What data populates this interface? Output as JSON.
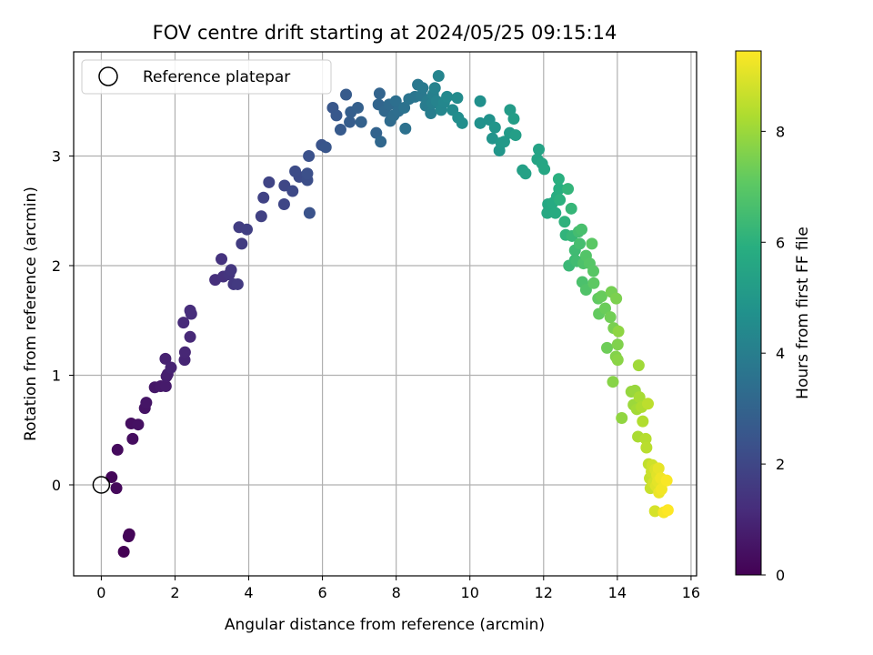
{
  "chart_data": {
    "type": "scatter",
    "title": "FOV centre drift starting at 2024/05/25 09:15:14",
    "xlabel": "Angular distance from reference (arcmin)",
    "ylabel": "Rotation from reference (arcmin)",
    "xlim": [
      -0.75,
      16.15
    ],
    "ylim": [
      -0.83,
      3.95
    ],
    "xticks": [
      0,
      2,
      4,
      6,
      8,
      10,
      12,
      14,
      16
    ],
    "yticks": [
      0,
      1,
      2,
      3
    ],
    "grid": true,
    "legend": {
      "position": "top-left",
      "entries": [
        "Reference platepar"
      ]
    },
    "reference_point": {
      "x": 0,
      "y": 0,
      "label": "Reference platepar"
    },
    "colorbar": {
      "label": "Hours from first FF file",
      "range": [
        0,
        9.45
      ],
      "ticks": [
        0,
        2,
        4,
        6,
        8
      ],
      "colormap": "viridis"
    },
    "points": [
      [
        0.61,
        -0.61
      ],
      [
        0.76,
        -0.45
      ],
      [
        0.74,
        -0.47
      ],
      [
        0.28,
        0.07
      ],
      [
        0.41,
        -0.03
      ],
      [
        0.44,
        0.32
      ],
      [
        0.85,
        0.42
      ],
      [
        0.81,
        0.56
      ],
      [
        1.0,
        0.55
      ],
      [
        1.18,
        0.7
      ],
      [
        1.22,
        0.75
      ],
      [
        1.45,
        0.89
      ],
      [
        1.61,
        0.9
      ],
      [
        1.75,
        0.9
      ],
      [
        1.77,
        0.99
      ],
      [
        1.8,
        1.01
      ],
      [
        1.74,
        1.15
      ],
      [
        1.89,
        1.07
      ],
      [
        2.26,
        1.14
      ],
      [
        2.27,
        1.21
      ],
      [
        2.41,
        1.35
      ],
      [
        2.23,
        1.48
      ],
      [
        2.41,
        1.59
      ],
      [
        2.44,
        1.56
      ],
      [
        3.09,
        1.87
      ],
      [
        3.31,
        1.9
      ],
      [
        3.26,
        2.06
      ],
      [
        3.47,
        1.92
      ],
      [
        3.52,
        1.96
      ],
      [
        3.59,
        1.83
      ],
      [
        3.7,
        1.83
      ],
      [
        3.81,
        2.2
      ],
      [
        3.74,
        2.35
      ],
      [
        3.95,
        2.33
      ],
      [
        4.34,
        2.45
      ],
      [
        4.4,
        2.62
      ],
      [
        4.55,
        2.76
      ],
      [
        4.96,
        2.56
      ],
      [
        4.97,
        2.73
      ],
      [
        5.19,
        2.68
      ],
      [
        5.37,
        2.81
      ],
      [
        5.26,
        2.86
      ],
      [
        5.59,
        2.78
      ],
      [
        5.59,
        2.84
      ],
      [
        5.63,
        3.0
      ],
      [
        5.65,
        2.48
      ],
      [
        5.98,
        3.1
      ],
      [
        6.09,
        3.08
      ],
      [
        6.28,
        3.44
      ],
      [
        6.38,
        3.37
      ],
      [
        6.49,
        3.24
      ],
      [
        6.64,
        3.56
      ],
      [
        6.74,
        3.31
      ],
      [
        6.77,
        3.4
      ],
      [
        6.96,
        3.44
      ],
      [
        7.05,
        3.31
      ],
      [
        7.46,
        3.21
      ],
      [
        7.55,
        3.57
      ],
      [
        7.52,
        3.47
      ],
      [
        7.58,
        3.13
      ],
      [
        7.69,
        3.41
      ],
      [
        7.81,
        3.47
      ],
      [
        7.84,
        3.32
      ],
      [
        7.93,
        3.37
      ],
      [
        8.06,
        3.41
      ],
      [
        7.99,
        3.5
      ],
      [
        8.25,
        3.25
      ],
      [
        8.22,
        3.44
      ],
      [
        8.35,
        3.52
      ],
      [
        8.51,
        3.54
      ],
      [
        8.59,
        3.65
      ],
      [
        8.68,
        3.55
      ],
      [
        8.72,
        3.62
      ],
      [
        8.8,
        3.46
      ],
      [
        8.86,
        3.51
      ],
      [
        8.94,
        3.39
      ],
      [
        8.98,
        3.48
      ],
      [
        9.0,
        3.56
      ],
      [
        9.05,
        3.62
      ],
      [
        9.1,
        3.5
      ],
      [
        9.15,
        3.73
      ],
      [
        9.22,
        3.42
      ],
      [
        9.3,
        3.49
      ],
      [
        9.38,
        3.54
      ],
      [
        9.53,
        3.42
      ],
      [
        9.66,
        3.53
      ],
      [
        9.68,
        3.35
      ],
      [
        9.79,
        3.3
      ],
      [
        10.28,
        3.5
      ],
      [
        10.28,
        3.3
      ],
      [
        10.53,
        3.33
      ],
      [
        10.61,
        3.16
      ],
      [
        10.68,
        3.26
      ],
      [
        10.8,
        3.05
      ],
      [
        10.85,
        3.12
      ],
      [
        10.93,
        3.13
      ],
      [
        11.08,
        3.21
      ],
      [
        11.09,
        3.42
      ],
      [
        11.19,
        3.34
      ],
      [
        11.24,
        3.19
      ],
      [
        11.43,
        2.87
      ],
      [
        11.51,
        2.84
      ],
      [
        11.87,
        3.06
      ],
      [
        11.83,
        2.97
      ],
      [
        11.96,
        2.93
      ],
      [
        12.02,
        2.88
      ],
      [
        12.12,
        2.56
      ],
      [
        12.1,
        2.48
      ],
      [
        12.24,
        2.57
      ],
      [
        12.32,
        2.48
      ],
      [
        12.36,
        2.63
      ],
      [
        12.42,
        2.7
      ],
      [
        12.41,
        2.79
      ],
      [
        12.44,
        2.6
      ],
      [
        12.57,
        2.4
      ],
      [
        12.6,
        2.28
      ],
      [
        12.66,
        2.7
      ],
      [
        12.75,
        2.52
      ],
      [
        12.77,
        2.27
      ],
      [
        12.69,
        2.0
      ],
      [
        12.85,
        2.05
      ],
      [
        12.85,
        2.14
      ],
      [
        12.9,
        2.04
      ],
      [
        12.95,
        2.31
      ],
      [
        12.98,
        2.2
      ],
      [
        13.03,
        2.33
      ],
      [
        13.05,
        1.85
      ],
      [
        13.08,
        2.02
      ],
      [
        13.15,
        1.78
      ],
      [
        13.15,
        2.09
      ],
      [
        13.25,
        2.02
      ],
      [
        13.35,
        1.95
      ],
      [
        13.31,
        2.2
      ],
      [
        13.36,
        1.84
      ],
      [
        13.48,
        1.7
      ],
      [
        13.5,
        1.56
      ],
      [
        13.57,
        1.72
      ],
      [
        13.67,
        1.61
      ],
      [
        13.72,
        1.25
      ],
      [
        13.81,
        1.53
      ],
      [
        13.84,
        1.76
      ],
      [
        13.9,
        1.43
      ],
      [
        13.97,
        1.7
      ],
      [
        14.01,
        1.28
      ],
      [
        13.96,
        1.17
      ],
      [
        13.88,
        0.94
      ],
      [
        14.01,
        1.14
      ],
      [
        14.03,
        1.4
      ],
      [
        14.12,
        0.61
      ],
      [
        14.38,
        0.85
      ],
      [
        14.48,
        0.86
      ],
      [
        14.44,
        0.73
      ],
      [
        14.58,
        1.09
      ],
      [
        14.53,
        0.69
      ],
      [
        14.6,
        0.8
      ],
      [
        14.56,
        0.44
      ],
      [
        14.66,
        0.71
      ],
      [
        14.69,
        0.58
      ],
      [
        14.77,
        0.42
      ],
      [
        14.79,
        0.34
      ],
      [
        14.83,
        0.74
      ],
      [
        14.85,
        0.19
      ],
      [
        14.88,
        0.06
      ],
      [
        14.9,
        -0.03
      ],
      [
        14.93,
        0.12
      ],
      [
        14.95,
        0.18
      ],
      [
        14.98,
        0.02
      ],
      [
        15.02,
        -0.24
      ],
      [
        15.03,
        0.14
      ],
      [
        15.05,
        -0.01
      ],
      [
        15.08,
        0.09
      ],
      [
        15.1,
        0.03
      ],
      [
        15.12,
        0.15
      ],
      [
        15.13,
        -0.07
      ],
      [
        15.18,
        0.06
      ],
      [
        15.2,
        -0.04
      ],
      [
        15.26,
        -0.25
      ],
      [
        15.34,
        0.04
      ],
      [
        15.37,
        -0.23
      ]
    ]
  }
}
